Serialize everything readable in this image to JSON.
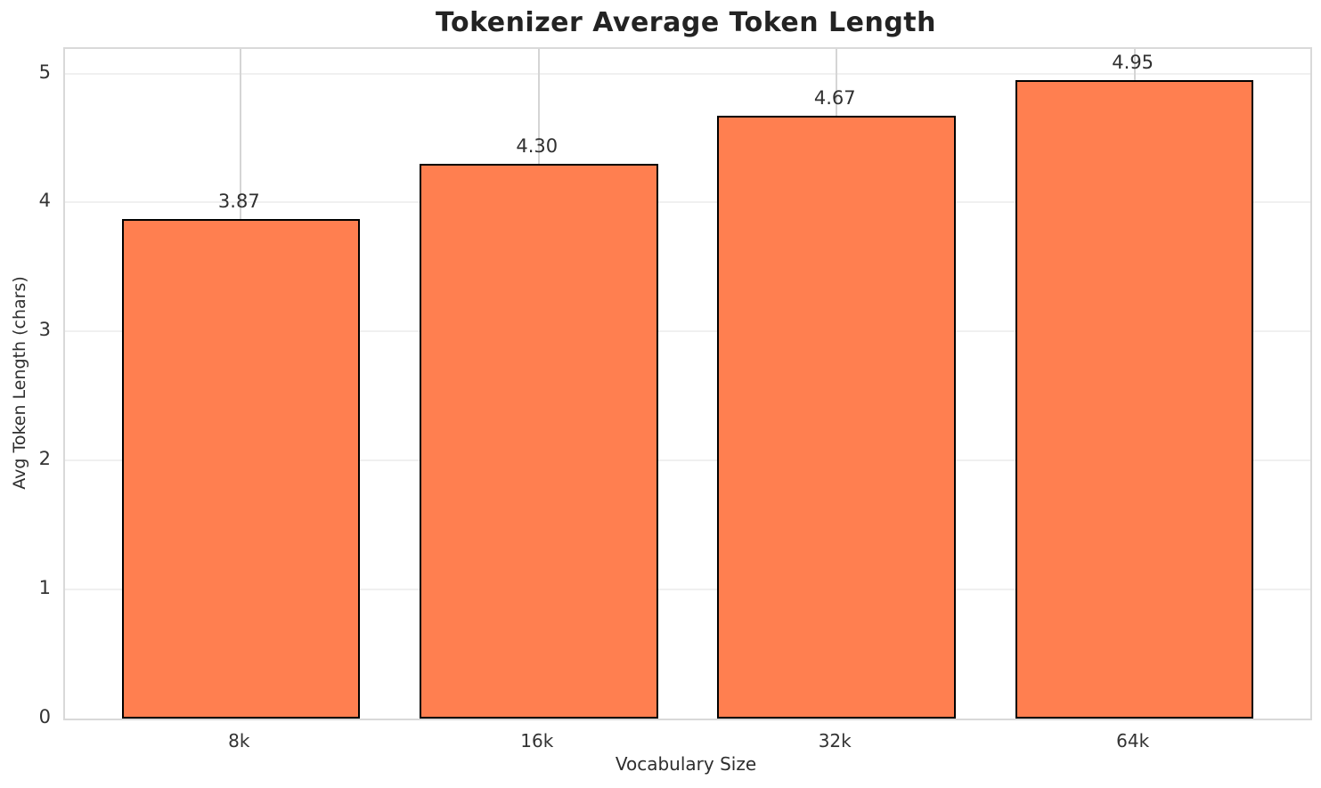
{
  "chart_data": {
    "type": "bar",
    "title": "Tokenizer Average Token Length",
    "xlabel": "Vocabulary Size",
    "ylabel": "Avg Token Length (chars)",
    "categories": [
      "8k",
      "16k",
      "32k",
      "64k"
    ],
    "values": [
      3.87,
      4.3,
      4.67,
      4.95
    ],
    "value_labels": [
      "3.87",
      "4.30",
      "4.67",
      "4.95"
    ],
    "yticks": [
      0,
      1,
      2,
      3,
      4,
      5
    ],
    "ylim": [
      0,
      5.19
    ],
    "xlim": [
      -0.59,
      3.59
    ],
    "bar_width_units": 0.8,
    "bar_color": "#ff7f50",
    "bar_edge_color": "#000000",
    "grid": true,
    "legend_position": "none"
  }
}
